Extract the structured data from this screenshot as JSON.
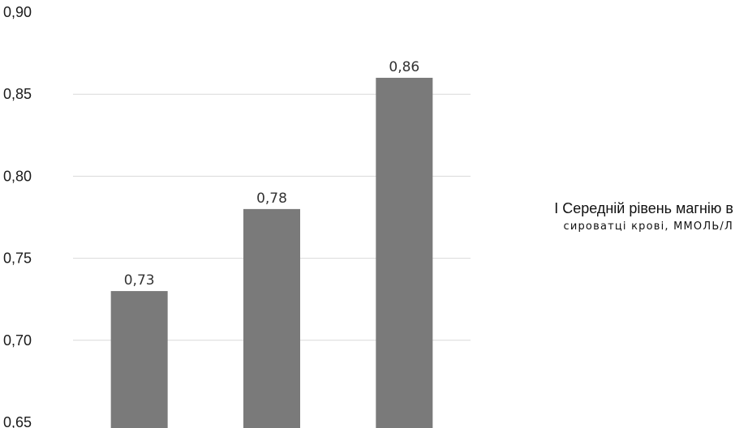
{
  "chart_data": {
    "type": "bar",
    "categories": [
      "",
      "",
      ""
    ],
    "values": [
      0.73,
      0.78,
      0.86
    ],
    "data_labels": [
      "0,73",
      "0,78",
      "0,86"
    ],
    "ylim": [
      0.65,
      0.9
    ],
    "yticks": [
      "0,65",
      "0,70",
      "0,75",
      "0,80",
      "0,85",
      "0,90"
    ],
    "grid": true,
    "legend_placement": "right",
    "legend": {
      "line1": "I Середній рівень магнію в",
      "line2": "сироватці крові, ММОЛЬ/Л"
    },
    "bar_color": "#7a7a7a",
    "grid_color": "#d9d9d9"
  }
}
